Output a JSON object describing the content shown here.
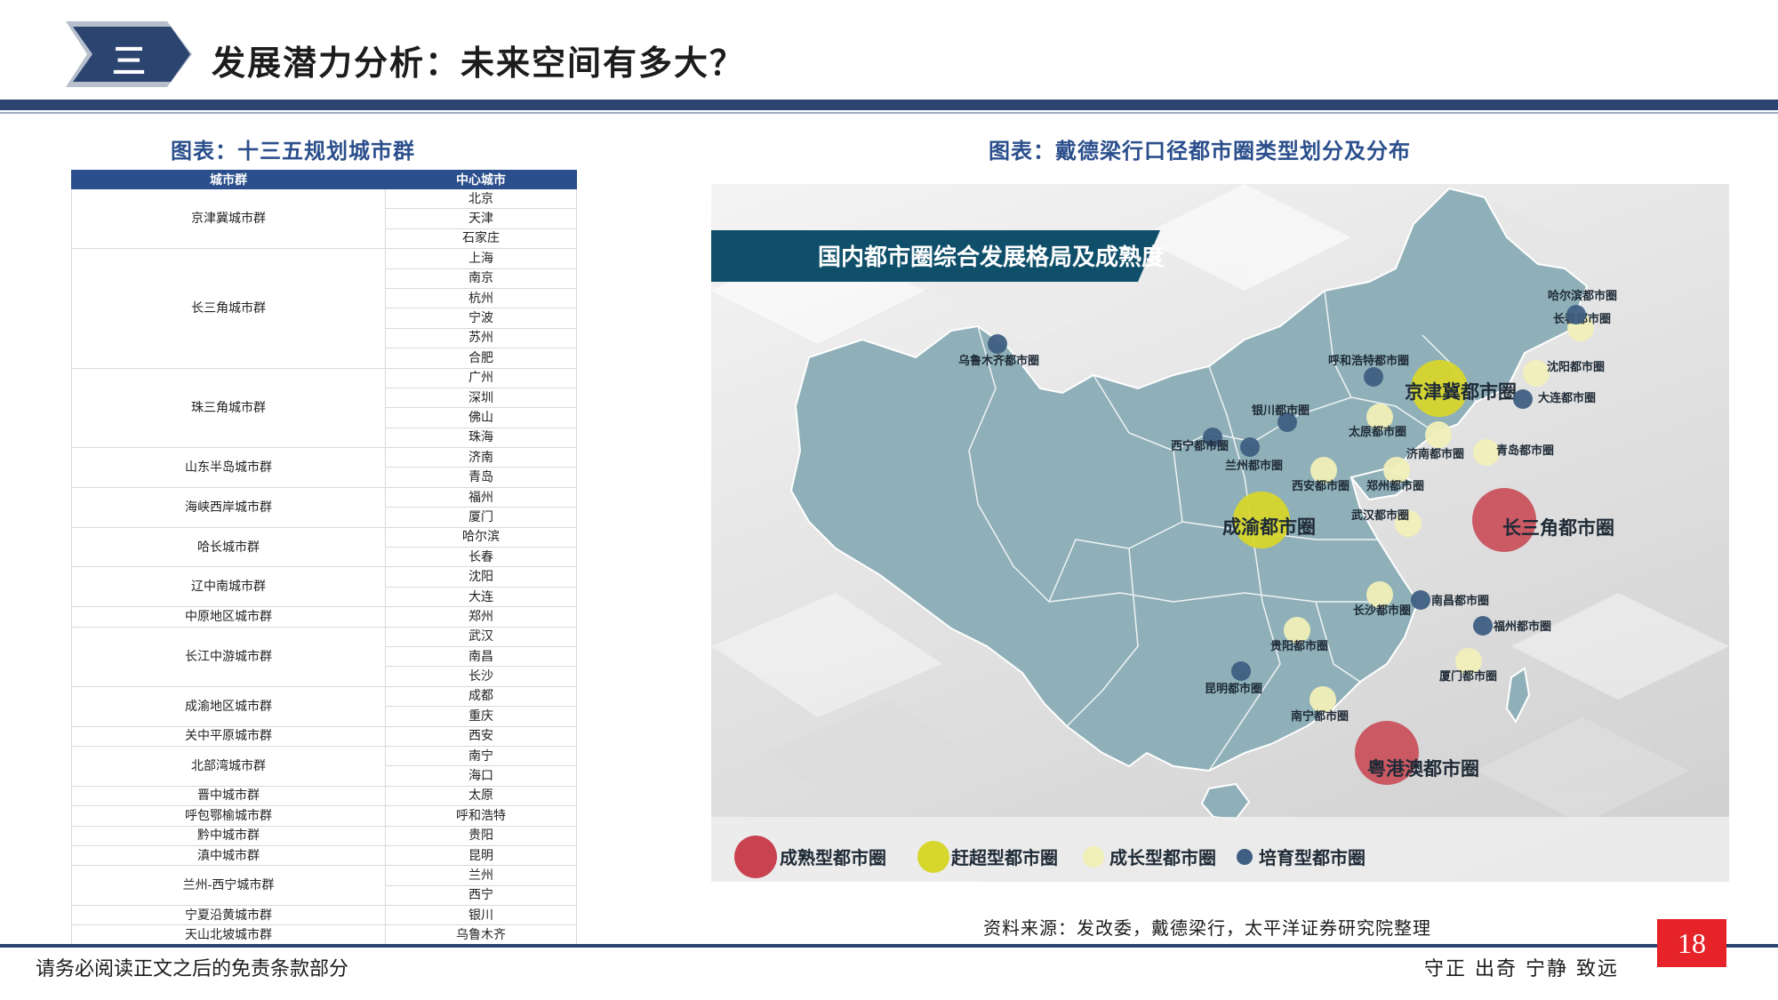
{
  "header": {
    "section_number": "三",
    "title": "发展潜力分析：未来空间有多大？"
  },
  "left": {
    "caption": "图表：十三五规划城市群",
    "columns": [
      "城市群",
      "中心城市"
    ],
    "groups": [
      {
        "name": "京津冀城市群",
        "cities": [
          "北京",
          "天津",
          "石家庄"
        ]
      },
      {
        "name": "长三角城市群",
        "cities": [
          "上海",
          "南京",
          "杭州",
          "宁波",
          "苏州",
          "合肥"
        ]
      },
      {
        "name": "珠三角城市群",
        "cities": [
          "广州",
          "深圳",
          "佛山",
          "珠海"
        ]
      },
      {
        "name": "山东半岛城市群",
        "cities": [
          "济南",
          "青岛"
        ]
      },
      {
        "name": "海峡西岸城市群",
        "cities": [
          "福州",
          "厦门"
        ]
      },
      {
        "name": "哈长城市群",
        "cities": [
          "哈尔滨",
          "长春"
        ]
      },
      {
        "name": "辽中南城市群",
        "cities": [
          "沈阳",
          "大连"
        ]
      },
      {
        "name": "中原地区城市群",
        "cities": [
          "郑州"
        ]
      },
      {
        "name": "长江中游城市群",
        "cities": [
          "武汉",
          "南昌",
          "长沙"
        ]
      },
      {
        "name": "成渝地区城市群",
        "cities": [
          "成都",
          "重庆"
        ]
      },
      {
        "name": "关中平原城市群",
        "cities": [
          "西安"
        ]
      },
      {
        "name": "北部湾城市群",
        "cities": [
          "南宁",
          "海口"
        ]
      },
      {
        "name": "晋中城市群",
        "cities": [
          "太原"
        ]
      },
      {
        "name": "呼包鄂榆城市群",
        "cities": [
          "呼和浩特"
        ]
      },
      {
        "name": "黔中城市群",
        "cities": [
          "贵阳"
        ]
      },
      {
        "name": "滇中城市群",
        "cities": [
          "昆明"
        ]
      },
      {
        "name": "兰州-西宁城市群",
        "cities": [
          "兰州",
          "西宁"
        ]
      },
      {
        "name": "宁夏沿黄城市群",
        "cities": [
          "银川"
        ]
      },
      {
        "name": "天山北坡城市群",
        "cities": [
          "乌鲁木齐"
        ]
      }
    ]
  },
  "right": {
    "caption": "图表：戴德梁行口径都市圈类型划分及分布",
    "map_title": "国内都市圈综合发展格局及成熟度",
    "colors": {
      "mature": "#c8434f",
      "catchup": "#d7d62c",
      "growth": "#f1efb8",
      "cultivate": "#3f5f82",
      "land": "#8fb0b8",
      "banner": "#0f4f6a"
    },
    "legend": [
      {
        "key": "mature",
        "label": "成熟型都市圈"
      },
      {
        "key": "catchup",
        "label": "赶超型都市圈"
      },
      {
        "key": "growth",
        "label": "成长型都市圈"
      },
      {
        "key": "cultivate",
        "label": "培育型都市圈"
      }
    ],
    "circles": [
      {
        "name": "长三角都市圈",
        "type": "mature"
      },
      {
        "name": "粤港澳都市圈",
        "type": "mature"
      },
      {
        "name": "京津冀都市圈",
        "type": "catchup"
      },
      {
        "name": "成渝都市圈",
        "type": "catchup"
      },
      {
        "name": "长春都市圈",
        "type": "growth"
      },
      {
        "name": "沈阳都市圈",
        "type": "growth"
      },
      {
        "name": "太原都市圈",
        "type": "growth"
      },
      {
        "name": "济南都市圈",
        "type": "growth"
      },
      {
        "name": "青岛都市圈",
        "type": "growth"
      },
      {
        "name": "西安都市圈",
        "type": "growth"
      },
      {
        "name": "郑州都市圈",
        "type": "growth"
      },
      {
        "name": "武汉都市圈",
        "type": "growth"
      },
      {
        "name": "长沙都市圈",
        "type": "growth"
      },
      {
        "name": "贵阳都市圈",
        "type": "growth"
      },
      {
        "name": "南宁都市圈",
        "type": "growth"
      },
      {
        "name": "厦门都市圈",
        "type": "growth"
      },
      {
        "name": "哈尔滨都市圈",
        "type": "cultivate"
      },
      {
        "name": "乌鲁木齐都市圈",
        "type": "cultivate"
      },
      {
        "name": "呼和浩特都市圈",
        "type": "cultivate"
      },
      {
        "name": "大连都市圈",
        "type": "cultivate"
      },
      {
        "name": "银川都市圈",
        "type": "cultivate"
      },
      {
        "name": "西宁都市圈",
        "type": "cultivate"
      },
      {
        "name": "兰州都市圈",
        "type": "cultivate"
      },
      {
        "name": "南昌都市圈",
        "type": "cultivate"
      },
      {
        "name": "福州都市圈",
        "type": "cultivate"
      },
      {
        "name": "昆明都市圈",
        "type": "cultivate"
      }
    ]
  },
  "footer": {
    "source": "资料来源：发改委，戴德梁行，太平洋证券研究院整理",
    "page_number": "18",
    "disclaimer": "请务必阅读正文之后的免责条款部分",
    "motto": "守正 出奇 宁静 致远"
  }
}
